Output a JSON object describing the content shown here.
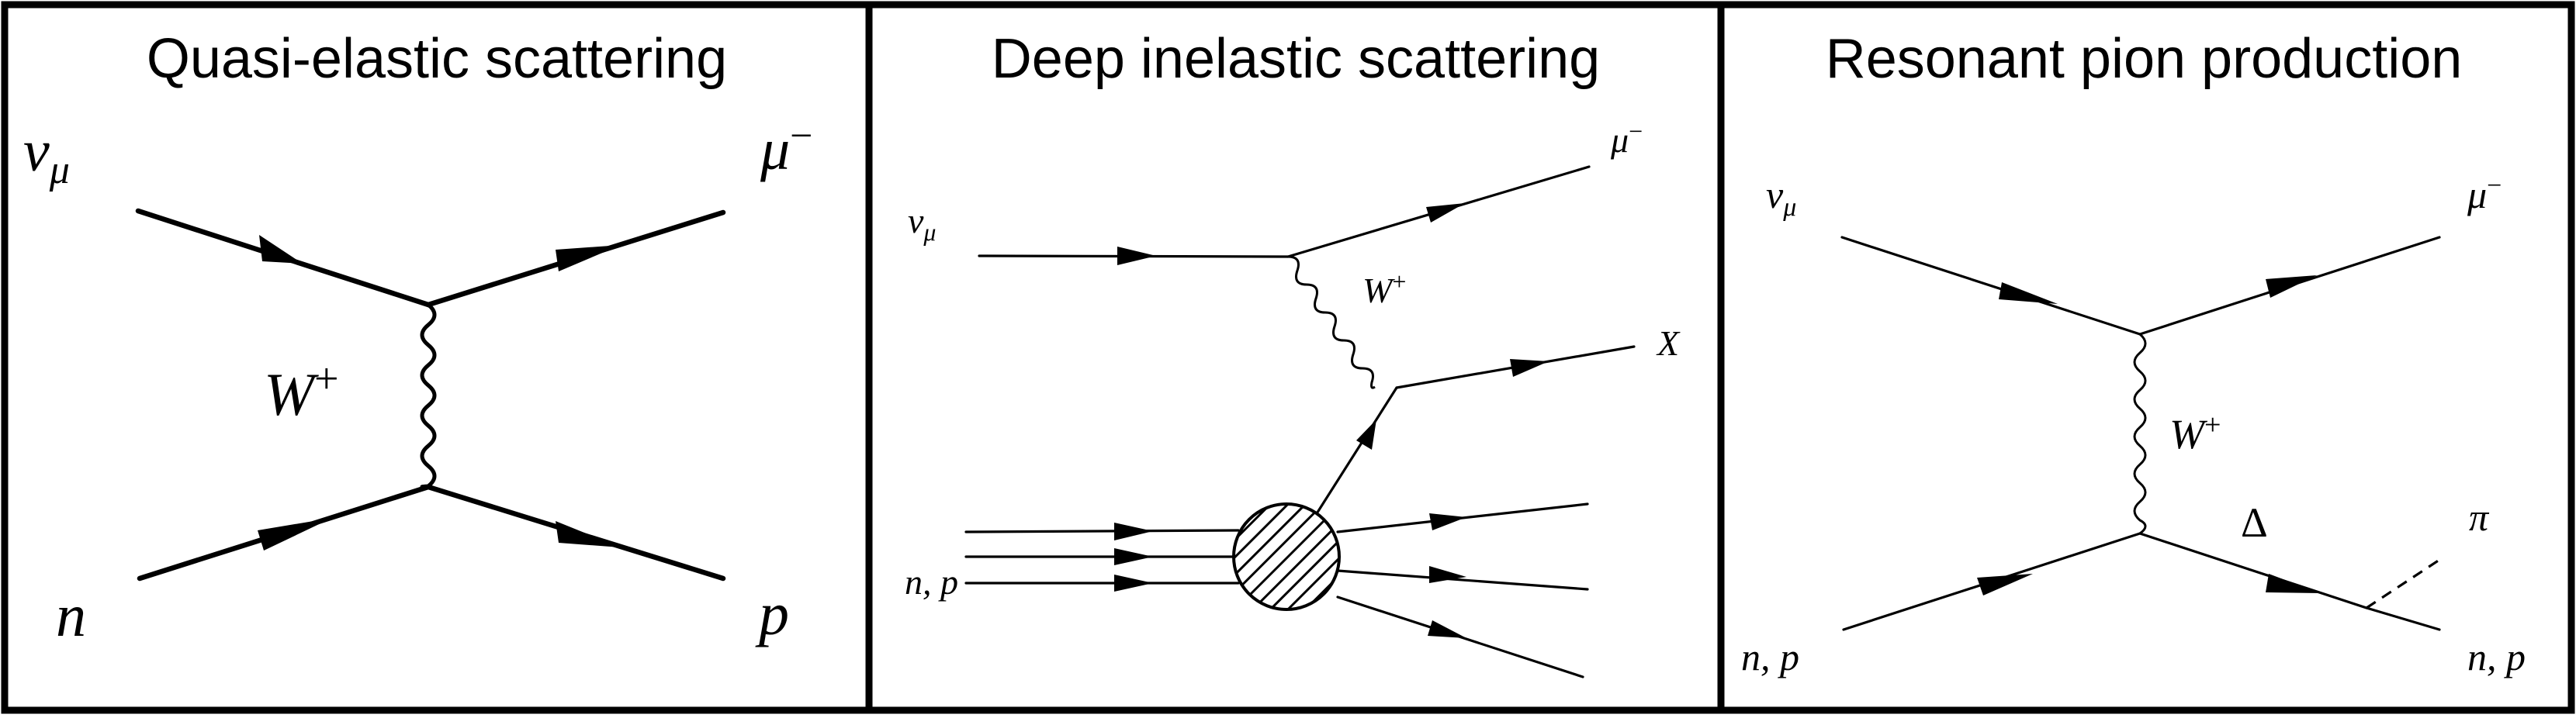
{
  "panels": [
    {
      "title": "Quasi-elastic scattering",
      "labels": {
        "incoming_top": "ν",
        "incoming_top_sub": "μ",
        "outgoing_top": "μ",
        "outgoing_top_sup": "−",
        "boson": "W",
        "boson_sup": "+",
        "incoming_bottom": "n",
        "outgoing_bottom": "p"
      }
    },
    {
      "title": "Deep inelastic scattering",
      "labels": {
        "incoming_top": "ν",
        "incoming_top_sub": "μ",
        "outgoing_top": "μ",
        "outgoing_top_sup": "−",
        "boson": "W",
        "boson_sup": "+",
        "hadronic": "X",
        "incoming_bottom": "n, p"
      }
    },
    {
      "title": "Resonant pion production",
      "labels": {
        "incoming_top": "ν",
        "incoming_top_sub": "μ",
        "outgoing_top": "μ",
        "outgoing_top_sup": "−",
        "boson": "W",
        "boson_sup": "+",
        "resonance": "Δ",
        "pion": "π",
        "incoming_bottom": "n, p",
        "outgoing_bottom": "n, p"
      }
    }
  ]
}
